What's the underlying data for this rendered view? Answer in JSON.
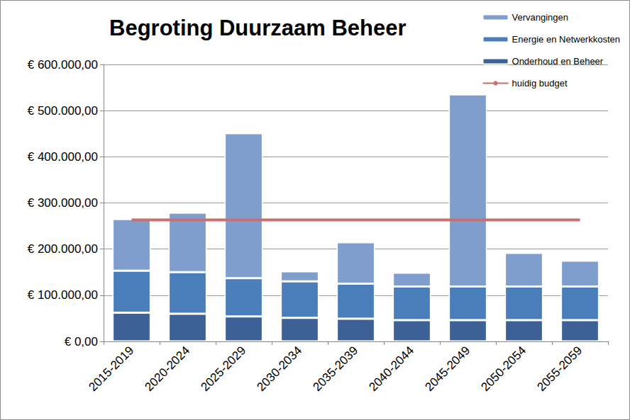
{
  "chart_data": {
    "type": "bar",
    "title": "Begroting Duurzaam Beheer",
    "stacked": true,
    "grid": true,
    "legend": "top-right",
    "categories": [
      "2015-2019",
      "2020-2024",
      "2025-2029",
      "2030-2034",
      "2035-2039",
      "2040-2044",
      "2045-2049",
      "2050-2054",
      "2055-2059"
    ],
    "series": [
      {
        "name": "Onderhoud en Beheer",
        "type": "bar",
        "color": "#3d6197",
        "values": [
          62000,
          60000,
          54000,
          51000,
          49000,
          46000,
          46000,
          46000,
          46000
        ]
      },
      {
        "name": "Energie en Netwerkkosten",
        "type": "bar",
        "color": "#4a7ebb",
        "values": [
          91000,
          90000,
          83000,
          79000,
          76000,
          73000,
          73000,
          73000,
          73000
        ]
      },
      {
        "name": "Vervangingen",
        "type": "bar",
        "color": "#7f9dcd",
        "values": [
          112000,
          129000,
          314000,
          22000,
          90000,
          30000,
          416000,
          73000,
          56000
        ]
      },
      {
        "name": "huidig budget",
        "type": "line",
        "color": "#c86f6f",
        "line_style": "solid",
        "values": [
          263000,
          263000,
          263000,
          263000,
          263000,
          263000,
          263000,
          263000,
          263000
        ]
      }
    ],
    "ylim": [
      0,
      600000
    ],
    "yticks": [
      {
        "value": 0,
        "label": "€ 0,00"
      },
      {
        "value": 100000,
        "label": "€ 100.000,00"
      },
      {
        "value": 200000,
        "label": "€ 200.000,00"
      },
      {
        "value": 300000,
        "label": "€ 300.000,00"
      },
      {
        "value": 400000,
        "label": "€ 400.000,00"
      },
      {
        "value": 500000,
        "label": "€ 500.000,00"
      },
      {
        "value": 600000,
        "label": "€ 600.000,00"
      }
    ]
  }
}
